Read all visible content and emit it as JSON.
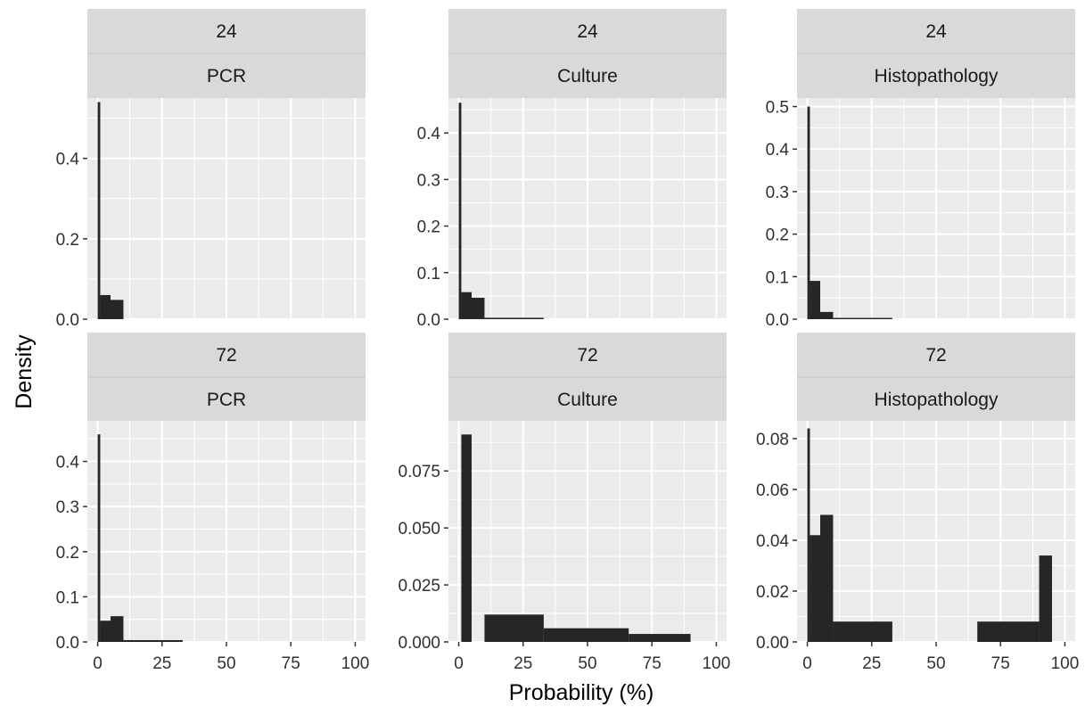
{
  "chart_data": [
    {
      "type": "bar",
      "facet_time": "24",
      "facet_test": "PCR",
      "ylim": [
        0,
        0.55
      ],
      "yticks": [
        "0.0",
        "0.2",
        "0.4"
      ],
      "ytick_values": [
        0,
        0.2,
        0.4
      ],
      "bars": [
        {
          "x0": 0,
          "x1": 1,
          "y": 0.54
        },
        {
          "x0": 1,
          "x1": 5,
          "y": 0.06
        },
        {
          "x0": 5,
          "x1": 10,
          "y": 0.048
        }
      ]
    },
    {
      "type": "bar",
      "facet_time": "24",
      "facet_test": "Culture",
      "ylim": [
        0,
        0.475
      ],
      "yticks": [
        "0.0",
        "0.1",
        "0.2",
        "0.3",
        "0.4"
      ],
      "ytick_values": [
        0,
        0.1,
        0.2,
        0.3,
        0.4
      ],
      "bars": [
        {
          "x0": 0,
          "x1": 1,
          "y": 0.465
        },
        {
          "x0": 1,
          "x1": 5,
          "y": 0.058
        },
        {
          "x0": 5,
          "x1": 10,
          "y": 0.046
        },
        {
          "x0": 10,
          "x1": 33,
          "y": 0.003
        }
      ]
    },
    {
      "type": "bar",
      "facet_time": "24",
      "facet_test": "Histopathology",
      "ylim": [
        0,
        0.52
      ],
      "yticks": [
        "0.0",
        "0.1",
        "0.2",
        "0.3",
        "0.4",
        "0.5"
      ],
      "ytick_values": [
        0,
        0.1,
        0.2,
        0.3,
        0.4,
        0.5
      ],
      "bars": [
        {
          "x0": 0,
          "x1": 1,
          "y": 0.5
        },
        {
          "x0": 1,
          "x1": 5,
          "y": 0.09
        },
        {
          "x0": 5,
          "x1": 10,
          "y": 0.017
        },
        {
          "x0": 10,
          "x1": 33,
          "y": 0.003
        }
      ]
    },
    {
      "type": "bar",
      "facet_time": "72",
      "facet_test": "PCR",
      "ylim": [
        0,
        0.49
      ],
      "yticks": [
        "0.0",
        "0.1",
        "0.2",
        "0.3",
        "0.4"
      ],
      "ytick_values": [
        0,
        0.1,
        0.2,
        0.3,
        0.4
      ],
      "bars": [
        {
          "x0": 0,
          "x1": 1,
          "y": 0.46
        },
        {
          "x0": 1,
          "x1": 5,
          "y": 0.047
        },
        {
          "x0": 5,
          "x1": 10,
          "y": 0.057
        },
        {
          "x0": 10,
          "x1": 33,
          "y": 0.004
        }
      ]
    },
    {
      "type": "bar",
      "facet_time": "72",
      "facet_test": "Culture",
      "ylim": [
        0,
        0.097
      ],
      "yticks": [
        "0.000",
        "0.025",
        "0.050",
        "0.075"
      ],
      "ytick_values": [
        0,
        0.025,
        0.05,
        0.075
      ],
      "bars": [
        {
          "x0": 1,
          "x1": 5,
          "y": 0.091
        },
        {
          "x0": 10,
          "x1": 33,
          "y": 0.012
        },
        {
          "x0": 33,
          "x1": 66,
          "y": 0.006
        },
        {
          "x0": 66,
          "x1": 90,
          "y": 0.0035
        }
      ]
    },
    {
      "type": "bar",
      "facet_time": "72",
      "facet_test": "Histopathology",
      "ylim": [
        0,
        0.087
      ],
      "yticks": [
        "0.00",
        "0.02",
        "0.04",
        "0.06",
        "0.08"
      ],
      "ytick_values": [
        0,
        0.02,
        0.04,
        0.06,
        0.08
      ],
      "bars": [
        {
          "x0": 0,
          "x1": 1,
          "y": 0.084
        },
        {
          "x0": 1,
          "x1": 5,
          "y": 0.042
        },
        {
          "x0": 5,
          "x1": 10,
          "y": 0.05
        },
        {
          "x0": 10,
          "x1": 33,
          "y": 0.008
        },
        {
          "x0": 66,
          "x1": 90,
          "y": 0.008
        },
        {
          "x0": 90,
          "x1": 95,
          "y": 0.034
        }
      ]
    }
  ],
  "xlim": [
    -4,
    104
  ],
  "xticks": [
    "0",
    "25",
    "50",
    "75",
    "100"
  ],
  "xtick_values": [
    0,
    25,
    50,
    75,
    100
  ],
  "xlabel": "Probability (%)",
  "ylabel": "Density",
  "colors": {
    "panel_bg": "#ebebeb",
    "strip_bg": "#d9d9d9",
    "grid": "#ffffff",
    "bar": "#262626",
    "text": "#303030"
  }
}
